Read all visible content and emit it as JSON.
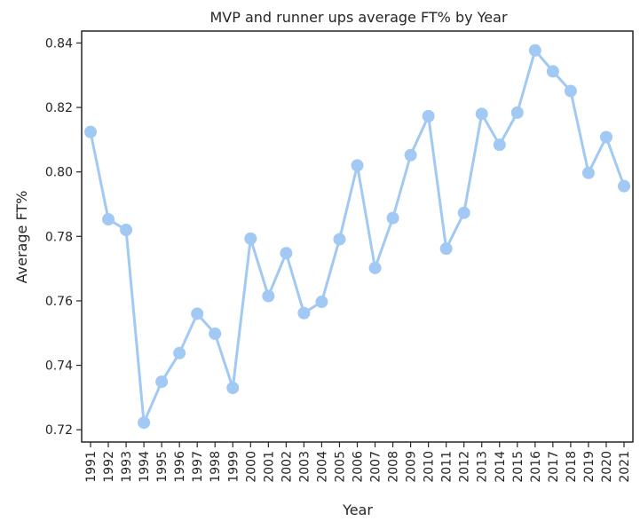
{
  "chart_data": {
    "type": "line",
    "title": "MVP and runner ups average FT% by Year",
    "xlabel": "Year",
    "ylabel": "Average FT%",
    "categories": [
      "1991",
      "1992",
      "1993",
      "1994",
      "1995",
      "1996",
      "1997",
      "1998",
      "1999",
      "2000",
      "2001",
      "2002",
      "2003",
      "2004",
      "2005",
      "2006",
      "2007",
      "2008",
      "2009",
      "2010",
      "2011",
      "2012",
      "2013",
      "2014",
      "2015",
      "2016",
      "2017",
      "2018",
      "2019",
      "2020",
      "2021"
    ],
    "series": [
      {
        "values": [
          0.8124,
          0.7853,
          0.782,
          0.7222,
          0.7349,
          0.7438,
          0.756,
          0.7498,
          0.733,
          0.7793,
          0.7615,
          0.7748,
          0.7562,
          0.7597,
          0.7791,
          0.802,
          0.7702,
          0.7857,
          0.8052,
          0.8173,
          0.7762,
          0.7873,
          0.818,
          0.8084,
          0.8184,
          0.8377,
          0.8312,
          0.8251,
          0.7997,
          0.8108,
          0.7956
        ],
        "color": "#a1c9f4"
      }
    ],
    "ylim": [
      0.7162,
      0.8437
    ],
    "yticks": [
      "0.72",
      "0.74",
      "0.76",
      "0.78",
      "0.80",
      "0.82",
      "0.84"
    ],
    "grid": false,
    "legend": "none"
  }
}
